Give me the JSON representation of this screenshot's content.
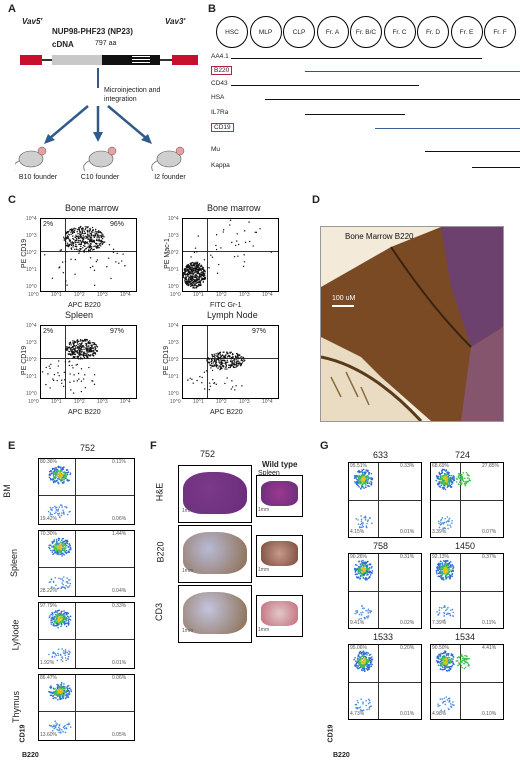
{
  "panels": {
    "A": "A",
    "B": "B",
    "C": "C",
    "D": "D",
    "E": "E",
    "F": "F",
    "G": "G"
  },
  "panelA": {
    "vav5": "Vav5'",
    "vav3": "Vav3'",
    "construct": "NUP98-PHF23 (NP23)",
    "cdna": "cDNA",
    "aa": "797 aa",
    "process": "Microinjection and integration",
    "founders": [
      "B10 founder",
      "C10 founder",
      "I2 founder"
    ]
  },
  "panelB": {
    "stages": [
      "HSC",
      "MLP",
      "CLP",
      "Fr. A",
      "Fr. B/C",
      "Fr. C",
      "Fr. D",
      "Fr. E",
      "Fr. F"
    ],
    "markers": [
      "AA4.1",
      "B220",
      "CD43",
      "HSA",
      "IL7Ra",
      "CD19",
      "Mu",
      "Kappa"
    ],
    "colors": {
      "B220": "#b0203a",
      "CD19": "#3a5f8f"
    }
  },
  "panelC": {
    "plots": [
      {
        "title": "Bone marrow",
        "xlabel": "APC B220",
        "ylabel": "PE CD19",
        "q_ul": "2%",
        "q_ur": "96%"
      },
      {
        "title": "Bone marrow",
        "xlabel": "FITC Gr-1",
        "ylabel": "PE Mac-1",
        "q_ul": "",
        "q_ur": ""
      },
      {
        "title": "Spleen",
        "xlabel": "APC B220",
        "ylabel": "PE CD19",
        "q_ul": "2%",
        "q_ur": "97%"
      },
      {
        "title": "Lymph Node",
        "xlabel": "APC B220",
        "ylabel": "PE CD19",
        "q_ul": "",
        "q_ur": "97%"
      }
    ],
    "ticks": [
      "10^0",
      "10^1",
      "10^2",
      "10^3",
      "10^4"
    ]
  },
  "panelD": {
    "title": "Bone Marrow B220",
    "scale": "100 uM"
  },
  "panelE": {
    "title": "752",
    "rows": [
      {
        "label": "BM",
        "ul": "80.36%",
        "ur": "0.11%",
        "ll": "19.42%",
        "lr": "0.06%"
      },
      {
        "label": "Spleen",
        "ul": "70.30%",
        "ur": "1.44%",
        "ll": "28.22%",
        "lr": "0.04%"
      },
      {
        "label": "LyNode",
        "ul": "97.79%",
        "ur": "0.33%",
        "ll": "1.92%",
        "lr": "0.01%"
      },
      {
        "label": "Thymus",
        "ul": "86.47%",
        "ur": "0.06%",
        "ll": "13.60%",
        "lr": "0.05%"
      }
    ],
    "xlabel": "B220",
    "ylabel": "CD19"
  },
  "panelF": {
    "title": "752",
    "wt": "Wild type",
    "spleen": "Spleen",
    "spleen2": "Spleen",
    "rows": [
      "H&E",
      "B220",
      "CD3"
    ],
    "scale": "1mm"
  },
  "panelG": {
    "samples": [
      {
        "id": "633",
        "ul": "95.51%",
        "ur": "0.33%",
        "ll": "4.15%",
        "lr": "0.01%"
      },
      {
        "id": "724",
        "ul": "68.69%",
        "ur": "27.85%",
        "ll": "3.39%",
        "lr": "0.07%"
      },
      {
        "id": "758",
        "ul": "90.26%",
        "ur": "0.31%",
        "ll": "9.41%",
        "lr": "0.02%"
      },
      {
        "id": "1450",
        "ul": "92.13%",
        "ur": "0.37%",
        "ll": "7.39%",
        "lr": "0.11%"
      },
      {
        "id": "1533",
        "ul": "95.06%",
        "ur": "0.20%",
        "ll": "4.73%",
        "lr": "0.01%"
      },
      {
        "id": "1534",
        "ul": "90.50%",
        "ur": "4.41%",
        "ll": "4.98%",
        "lr": "0.10%"
      }
    ],
    "xlabel": "B220",
    "ylabel": "CD19"
  }
}
